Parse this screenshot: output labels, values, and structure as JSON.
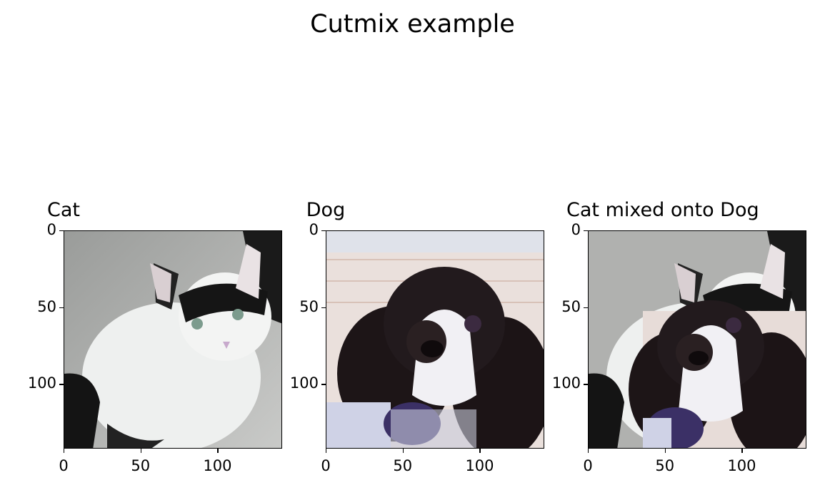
{
  "figure": {
    "suptitle": "Cutmix example",
    "panels": [
      {
        "title": "Cat",
        "image": "cat-photo"
      },
      {
        "title": "Dog",
        "image": "dog-photo"
      },
      {
        "title": "Cat mixed onto Dog",
        "image": "cutmix-photo"
      }
    ],
    "yticks": [
      "0",
      "50",
      "100"
    ],
    "xticks": [
      "0",
      "50",
      "100"
    ],
    "image_size": 142
  }
}
